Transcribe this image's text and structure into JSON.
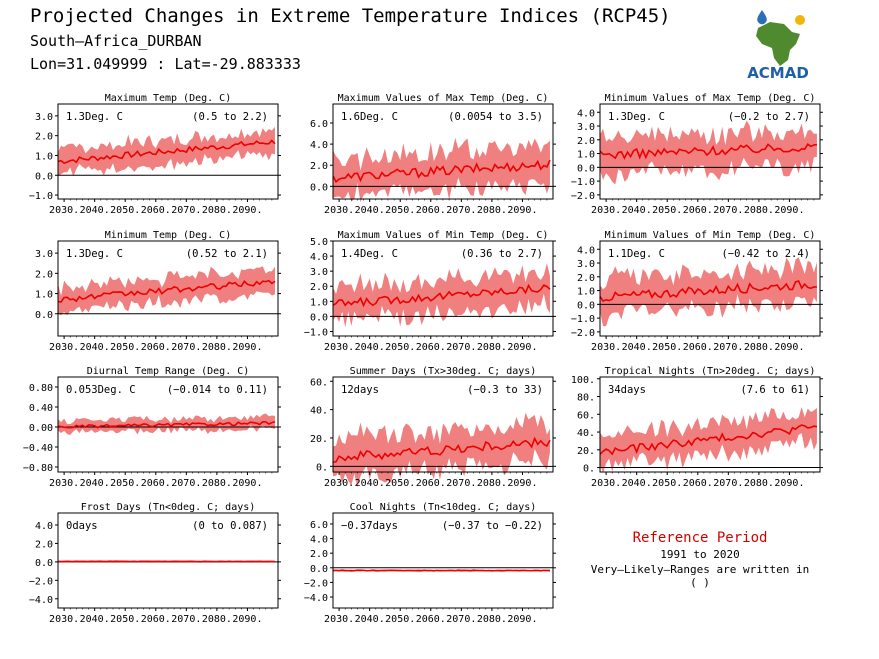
{
  "header": {
    "title": "Projected Changes in Extreme Temperature Indices (RCP45)",
    "location": "South–Africa_DURBAN",
    "coords": "Lon=31.049999 : Lat=-29.883333",
    "logo_text": "ACMAD"
  },
  "reference": {
    "title": "Reference Period",
    "period": "1991 to 2020",
    "note": "Very–Likely–Ranges are written in ( )"
  },
  "colors": {
    "band": "#f08080",
    "line": "#ee0000",
    "zero": "#000000",
    "ref_title": "#d40000"
  },
  "chart_data": [
    {
      "type": "area",
      "title": "Maximum Temp (Deg. C)",
      "value_label": "1.3Deg. C",
      "range_label": "(0.5 to 2.2)",
      "ylim": [
        -1.2,
        3.6
      ],
      "yticks": [
        "−1.0",
        "0.0",
        "1.0",
        "2.0",
        "3.0"
      ],
      "ytick_values": [
        -1,
        0,
        1,
        2,
        3
      ],
      "x_ticks": [
        "2030.",
        "2040.",
        "2050.",
        "2060.",
        "2070.",
        "2080.",
        "2090."
      ],
      "x_tick_values": [
        2030,
        2040,
        2050,
        2060,
        2070,
        2080,
        2090
      ],
      "xlim": [
        2028,
        2100
      ],
      "mean_start": 0.7,
      "mean_end": 1.7,
      "band_width": 0.6
    },
    {
      "type": "area",
      "title": "Maximum Values of Max Temp (Deg. C)",
      "value_label": "1.6Deg. C",
      "range_label": "(0.0054 to 3.5)",
      "ylim": [
        -1.2,
        7.8
      ],
      "yticks": [
        "0.0",
        "2.0",
        "4.0",
        "6.0"
      ],
      "ytick_values": [
        0,
        2,
        4,
        6
      ],
      "x_ticks": [
        "2030.",
        "2040.",
        "2050.",
        "2060.",
        "2070.",
        "2080.",
        "2090."
      ],
      "x_tick_values": [
        2030,
        2040,
        2050,
        2060,
        2070,
        2080,
        2090
      ],
      "xlim": [
        2028,
        2100
      ],
      "mean_start": 0.8,
      "mean_end": 2.1,
      "band_width": 1.8
    },
    {
      "type": "area",
      "title": "Minimum Values of Max Temp (Deg. C)",
      "value_label": "1.3Deg. C",
      "range_label": "(−0.2 to 2.7)",
      "ylim": [
        -2.3,
        4.6
      ],
      "yticks": [
        "−2.0",
        "−1.0",
        "0.0",
        "1.0",
        "2.0",
        "3.0",
        "4.0"
      ],
      "ytick_values": [
        -2,
        -1,
        0,
        1,
        2,
        3,
        4
      ],
      "x_ticks": [
        "2030.",
        "2040.",
        "2050.",
        "2060.",
        "2070.",
        "2080.",
        "2090."
      ],
      "x_tick_values": [
        2030,
        2040,
        2050,
        2060,
        2070,
        2080,
        2090
      ],
      "xlim": [
        2028,
        2100
      ],
      "mean_start": 0.9,
      "mean_end": 1.5,
      "band_width": 1.3
    },
    {
      "type": "area",
      "title": "Minimum Temp (Deg. C)",
      "value_label": "1.3Deg. C",
      "range_label": "(0.52 to 2.1)",
      "ylim": [
        -1.1,
        3.6
      ],
      "yticks": [
        "0.0",
        "1.0",
        "2.0",
        "3.0"
      ],
      "ytick_values": [
        0,
        1,
        2,
        3
      ],
      "x_ticks": [
        "2030.",
        "2040.",
        "2050.",
        "2060.",
        "2070.",
        "2080.",
        "2090."
      ],
      "x_tick_values": [
        2030,
        2040,
        2050,
        2060,
        2070,
        2080,
        2090
      ],
      "xlim": [
        2028,
        2100
      ],
      "mean_start": 0.7,
      "mean_end": 1.6,
      "band_width": 0.6
    },
    {
      "type": "area",
      "title": "Maximum Values of Min Temp (Deg. C)",
      "value_label": "1.4Deg. C",
      "range_label": "(0.36 to 2.7)",
      "ylim": [
        -1.3,
        5.0
      ],
      "yticks": [
        "−1.0",
        "0.0",
        "1.0",
        "2.0",
        "3.0",
        "4.0",
        "5.0"
      ],
      "ytick_values": [
        -1,
        0,
        1,
        2,
        3,
        4,
        5
      ],
      "x_ticks": [
        "2030.",
        "2040.",
        "2050.",
        "2060.",
        "2070.",
        "2080.",
        "2090."
      ],
      "x_tick_values": [
        2030,
        2040,
        2050,
        2060,
        2070,
        2080,
        2090
      ],
      "xlim": [
        2028,
        2100
      ],
      "mean_start": 0.8,
      "mean_end": 1.9,
      "band_width": 1.1
    },
    {
      "type": "area",
      "title": "Minimum Values of Min Temp (Deg. C)",
      "value_label": "1.1Deg. C",
      "range_label": "(−0.42 to 2.4)",
      "ylim": [
        -2.3,
        4.6
      ],
      "yticks": [
        "−2.0",
        "−1.0",
        "0.0",
        "1.0",
        "2.0",
        "3.0",
        "4.0"
      ],
      "ytick_values": [
        -2,
        -1,
        0,
        1,
        2,
        3,
        4
      ],
      "x_ticks": [
        "2030.",
        "2040.",
        "2050.",
        "2060.",
        "2070.",
        "2080.",
        "2090."
      ],
      "x_tick_values": [
        2030,
        2040,
        2050,
        2060,
        2070,
        2080,
        2090
      ],
      "xlim": [
        2028,
        2100
      ],
      "mean_start": 0.5,
      "mean_end": 1.5,
      "band_width": 1.3
    },
    {
      "type": "area",
      "title": "Diurnal Temp Range (Deg. C)",
      "value_label": "0.053Deg. C",
      "range_label": "(−0.014 to 0.11)",
      "ylim": [
        -0.9,
        1.0
      ],
      "yticks": [
        "−0.80",
        "−0.40",
        "0.00",
        "0.40",
        "0.80"
      ],
      "ytick_values": [
        -0.8,
        -0.4,
        0,
        0.4,
        0.8
      ],
      "x_ticks": [
        "2030.",
        "2040.",
        "2050.",
        "2060.",
        "2070.",
        "2080.",
        "2090."
      ],
      "x_tick_values": [
        2030,
        2040,
        2050,
        2060,
        2070,
        2080,
        2090
      ],
      "xlim": [
        2028,
        2100
      ],
      "mean_start": 0.0,
      "mean_end": 0.08,
      "band_width": 0.12
    },
    {
      "type": "area",
      "title": "Summer Days (Tx>30deg. C; days)",
      "value_label": "12days",
      "range_label": "(−0.3 to 33)",
      "ylim": [
        -4,
        63
      ],
      "yticks": [
        "0.",
        "20.",
        "40.",
        "60."
      ],
      "ytick_values": [
        0,
        20,
        40,
        60
      ],
      "x_ticks": [
        "2030.",
        "2040.",
        "2050.",
        "2060.",
        "2070.",
        "2080.",
        "2090."
      ],
      "x_tick_values": [
        2030,
        2040,
        2050,
        2060,
        2070,
        2080,
        2090
      ],
      "xlim": [
        2028,
        2100
      ],
      "mean_start": 6,
      "mean_end": 17,
      "band_width": 14
    },
    {
      "type": "area",
      "title": "Tropical Nights (Tn>20deg. C; days)",
      "value_label": "34days",
      "range_label": "(7.6 to 61)",
      "ylim": [
        -5,
        102
      ],
      "yticks": [
        "0.",
        "20.",
        "40.",
        "60.",
        "80.",
        "100."
      ],
      "ytick_values": [
        0,
        20,
        40,
        60,
        80,
        100
      ],
      "x_ticks": [
        "2030.",
        "2040.",
        "2050.",
        "2060.",
        "2070.",
        "2080.",
        "2090."
      ],
      "x_tick_values": [
        2030,
        2040,
        2050,
        2060,
        2070,
        2080,
        2090
      ],
      "xlim": [
        2028,
        2100
      ],
      "mean_start": 17,
      "mean_end": 46,
      "band_width": 18
    },
    {
      "type": "area",
      "title": "Frost Days (Tn<0deg. C; days)",
      "value_label": "0days",
      "range_label": "(0 to 0.087)",
      "ylim": [
        -5,
        5.3
      ],
      "yticks": [
        "−4.0",
        "−2.0",
        "0.0",
        "2.0",
        "4.0"
      ],
      "ytick_values": [
        -4,
        -2,
        0,
        2,
        4
      ],
      "x_ticks": [
        "2030.",
        "2040.",
        "2050.",
        "2060.",
        "2070.",
        "2080.",
        "2090."
      ],
      "x_tick_values": [
        2030,
        2040,
        2050,
        2060,
        2070,
        2080,
        2090
      ],
      "xlim": [
        2028,
        2100
      ],
      "mean_start": 0.05,
      "mean_end": 0.05,
      "band_width": 0.08
    },
    {
      "type": "area",
      "title": "Cool Nights (Tn<10deg. C; days)",
      "value_label": "−0.37days",
      "range_label": "(−0.37 to −0.22)",
      "ylim": [
        -5.5,
        7.5
      ],
      "yticks": [
        "−4.0",
        "−2.0",
        "0.0",
        "2.0",
        "4.0",
        "6.0"
      ],
      "ytick_values": [
        -4,
        -2,
        0,
        2,
        4,
        6
      ],
      "x_ticks": [
        "2030.",
        "2040.",
        "2050.",
        "2060.",
        "2070.",
        "2080.",
        "2090."
      ],
      "x_tick_values": [
        2030,
        2040,
        2050,
        2060,
        2070,
        2080,
        2090
      ],
      "xlim": [
        2028,
        2100
      ],
      "mean_start": -0.37,
      "mean_end": -0.37,
      "band_width": 0.12
    }
  ]
}
